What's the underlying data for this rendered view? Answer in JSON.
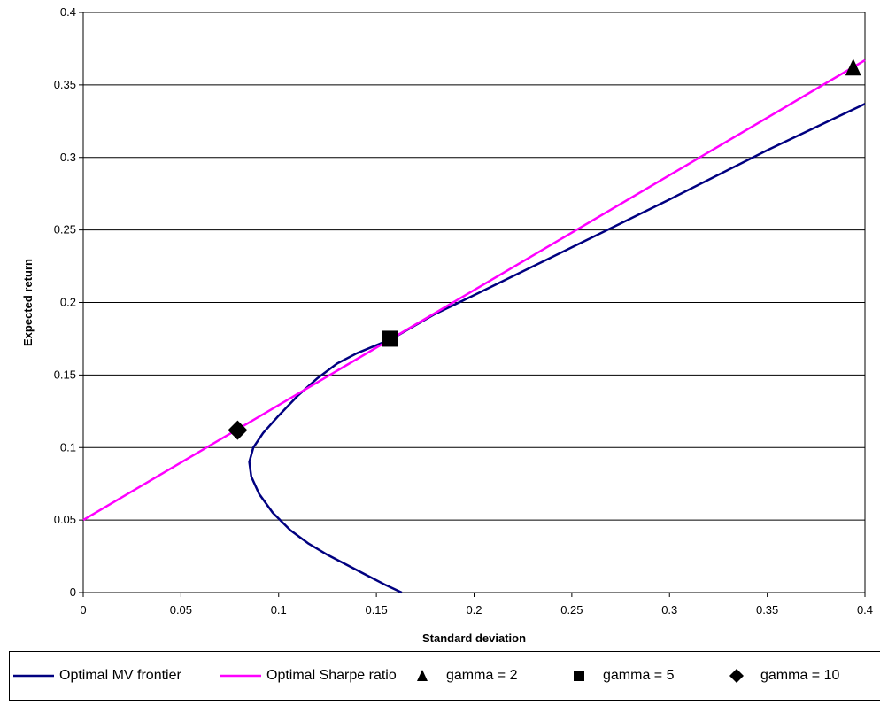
{
  "chart_data": {
    "type": "scatter",
    "xlabel": "Standard deviation",
    "ylabel": "Expected return",
    "xlim": [
      0,
      0.4
    ],
    "ylim": [
      0,
      0.4
    ],
    "x_ticks": [
      "0",
      "0.05",
      "0.1",
      "0.15",
      "0.2",
      "0.25",
      "0.3",
      "0.35",
      "0.4"
    ],
    "y_ticks": [
      "0",
      "0.05",
      "0.1",
      "0.15",
      "0.2",
      "0.25",
      "0.3",
      "0.35",
      "0.4"
    ],
    "grid": "horizontal",
    "legend_position": "bottom",
    "series": [
      {
        "name": "Optimal MV frontier",
        "kind": "line",
        "color": "#000080",
        "points": [
          [
            0.163,
            0.0
          ],
          [
            0.155,
            0.005
          ],
          [
            0.145,
            0.012
          ],
          [
            0.135,
            0.019
          ],
          [
            0.125,
            0.026
          ],
          [
            0.115,
            0.034
          ],
          [
            0.106,
            0.043
          ],
          [
            0.097,
            0.055
          ],
          [
            0.09,
            0.068
          ],
          [
            0.086,
            0.08
          ],
          [
            0.085,
            0.09
          ],
          [
            0.087,
            0.1
          ],
          [
            0.092,
            0.11
          ],
          [
            0.1,
            0.122
          ],
          [
            0.11,
            0.136
          ],
          [
            0.12,
            0.148
          ],
          [
            0.13,
            0.158
          ],
          [
            0.14,
            0.165
          ],
          [
            0.158,
            0.175
          ],
          [
            0.18,
            0.192
          ],
          [
            0.2,
            0.205
          ],
          [
            0.25,
            0.238
          ],
          [
            0.3,
            0.271
          ],
          [
            0.35,
            0.305
          ],
          [
            0.4,
            0.337
          ]
        ]
      },
      {
        "name": "Optimal Sharpe ratio",
        "kind": "line",
        "color": "#ff00ff",
        "points": [
          [
            0,
            0.05
          ],
          [
            0.4,
            0.367
          ]
        ]
      },
      {
        "name": "gamma = 2",
        "kind": "marker",
        "marker": "triangle",
        "color": "#000000",
        "points": [
          [
            0.394,
            0.362
          ]
        ]
      },
      {
        "name": "gamma = 5",
        "kind": "marker",
        "marker": "square",
        "color": "#000000",
        "points": [
          [
            0.157,
            0.175
          ]
        ]
      },
      {
        "name": "gamma = 10",
        "kind": "marker",
        "marker": "diamond",
        "color": "#000000",
        "points": [
          [
            0.079,
            0.112
          ]
        ]
      }
    ]
  }
}
